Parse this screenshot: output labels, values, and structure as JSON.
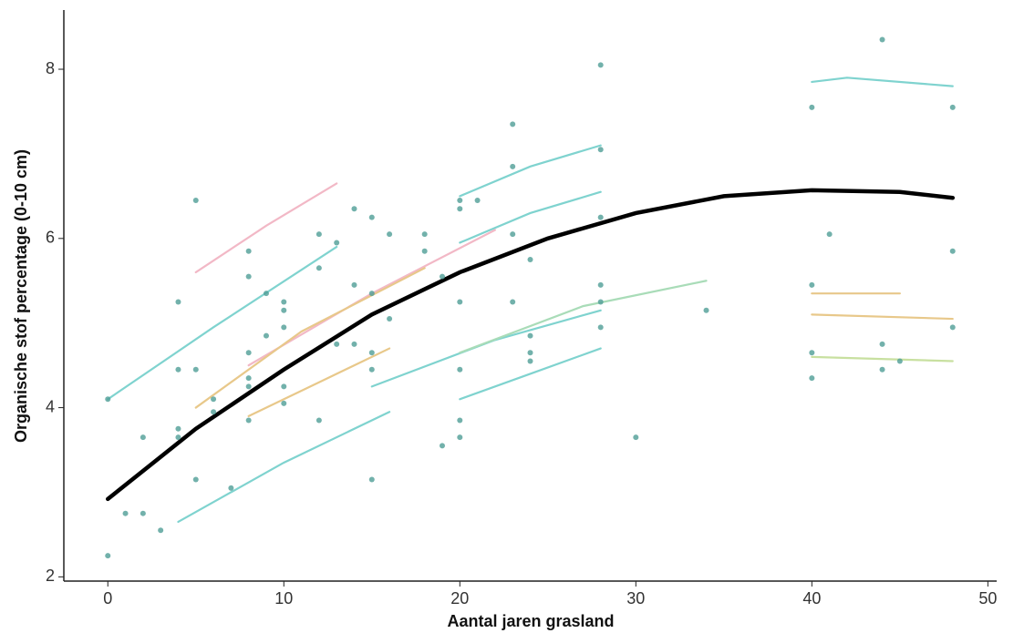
{
  "chart_data": {
    "type": "scatter",
    "x_label": "Aantal jaren grasland",
    "y_label": "Organische stof percentage (0-10 cm)",
    "xlim": [
      -2.5,
      50.5
    ],
    "ylim": [
      1.95,
      8.7
    ],
    "xticks": [
      0,
      10,
      20,
      30,
      40,
      50
    ],
    "yticks": [
      2,
      4,
      6,
      8
    ],
    "grid": false,
    "series": [
      {
        "type": "line",
        "color": "#7fd3cf",
        "x": [
          0,
          6,
          13
        ],
        "values": [
          4.1,
          4.95,
          5.9
        ]
      },
      {
        "type": "line",
        "color": "#f2b8c6",
        "x": [
          5,
          9,
          13
        ],
        "values": [
          5.6,
          6.15,
          6.65
        ]
      },
      {
        "type": "line",
        "color": "#7fd3cf",
        "x": [
          20,
          24,
          28
        ],
        "values": [
          6.5,
          6.85,
          7.1
        ]
      },
      {
        "type": "line",
        "color": "#7fd3cf",
        "x": [
          20,
          24,
          28
        ],
        "values": [
          5.95,
          6.3,
          6.55
        ]
      },
      {
        "type": "line",
        "color": "#f2b8c6",
        "x": [
          8,
          15,
          22
        ],
        "values": [
          4.5,
          5.35,
          6.1
        ]
      },
      {
        "type": "line",
        "color": "#e8c88a",
        "x": [
          5,
          11,
          18
        ],
        "values": [
          4.0,
          4.9,
          5.65
        ]
      },
      {
        "type": "line",
        "color": "#e8c88a",
        "x": [
          8,
          12,
          16
        ],
        "values": [
          3.9,
          4.3,
          4.7
        ]
      },
      {
        "type": "line",
        "color": "#7fd3cf",
        "x": [
          4,
          10,
          16
        ],
        "values": [
          2.65,
          3.35,
          3.95
        ]
      },
      {
        "type": "line",
        "color": "#7fd3cf",
        "x": [
          15,
          22,
          28
        ],
        "values": [
          4.25,
          4.8,
          5.15
        ]
      },
      {
        "type": "line",
        "color": "#7fd3cf",
        "x": [
          20,
          24,
          28
        ],
        "values": [
          4.1,
          4.4,
          4.7
        ]
      },
      {
        "type": "line",
        "color": "#a9dcb8",
        "x": [
          20,
          27,
          34
        ],
        "values": [
          4.65,
          5.2,
          5.5
        ]
      },
      {
        "type": "line",
        "color": "#7fd3cf",
        "x": [
          40,
          42,
          48
        ],
        "values": [
          7.85,
          7.9,
          7.8
        ]
      },
      {
        "type": "line",
        "color": "#e8c88a",
        "x": [
          40,
          45
        ],
        "values": [
          5.35,
          5.35
        ]
      },
      {
        "type": "line",
        "color": "#e8c88a",
        "x": [
          40,
          48
        ],
        "values": [
          5.1,
          5.05
        ]
      },
      {
        "type": "line",
        "color": "#c8e0a0",
        "x": [
          40,
          48
        ],
        "values": [
          4.6,
          4.55
        ]
      },
      {
        "type": "line",
        "color": "#000000",
        "x": [
          0,
          5,
          10,
          15,
          20,
          25,
          30,
          35,
          40,
          45,
          48
        ],
        "values": [
          2.92,
          3.75,
          4.45,
          5.1,
          5.6,
          6.0,
          6.3,
          6.5,
          6.57,
          6.55,
          6.48
        ]
      },
      {
        "type": "scatter",
        "color": "#4f9e96",
        "x": [
          0,
          0,
          1,
          2,
          2,
          3,
          4,
          4,
          4,
          4,
          5,
          5,
          5,
          6,
          6,
          7,
          8,
          8,
          8,
          8,
          8,
          8,
          9,
          9,
          10,
          10,
          10,
          10,
          10,
          12,
          12,
          12,
          13,
          13,
          14,
          14,
          14,
          15,
          15,
          15,
          15,
          15,
          16,
          16,
          18,
          18,
          19,
          19,
          20,
          20,
          20,
          20,
          20,
          20,
          21,
          23,
          23,
          23,
          23,
          24,
          24,
          24,
          24,
          28,
          28,
          28,
          28,
          28,
          28,
          30,
          34,
          40,
          40,
          40,
          40,
          41,
          44,
          44,
          44,
          45,
          48,
          48,
          48
        ],
        "values": [
          4.1,
          2.25,
          2.75,
          3.65,
          2.75,
          2.55,
          5.25,
          4.45,
          3.75,
          3.65,
          6.45,
          4.45,
          3.15,
          4.1,
          3.95,
          3.05,
          5.85,
          5.55,
          4.65,
          4.35,
          4.25,
          3.85,
          5.35,
          4.85,
          5.25,
          5.15,
          4.95,
          4.25,
          4.05,
          6.05,
          5.65,
          3.85,
          5.95,
          4.75,
          6.35,
          5.45,
          4.75,
          6.25,
          5.35,
          4.65,
          4.45,
          3.15,
          6.05,
          5.05,
          6.05,
          5.85,
          5.55,
          3.55,
          6.45,
          6.35,
          5.25,
          4.45,
          3.85,
          3.65,
          6.45,
          7.35,
          6.85,
          6.05,
          5.25,
          5.75,
          4.85,
          4.65,
          4.55,
          8.05,
          7.05,
          6.25,
          5.45,
          5.25,
          4.95,
          3.65,
          5.15,
          7.55,
          5.45,
          4.65,
          4.35,
          6.05,
          8.35,
          4.75,
          4.45,
          4.55,
          7.55,
          5.85,
          4.95
        ]
      }
    ]
  }
}
